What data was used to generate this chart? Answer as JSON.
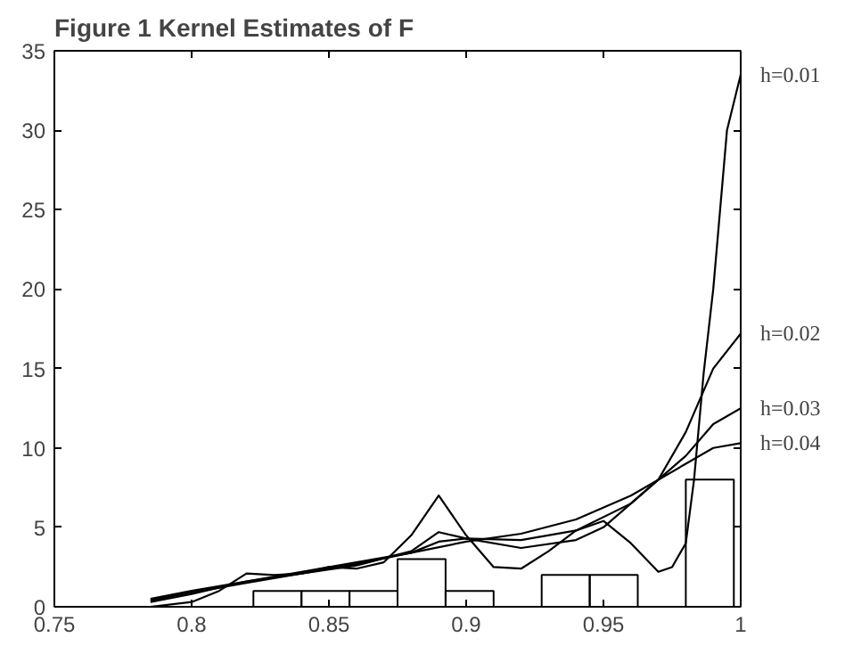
{
  "chart_data": {
    "type": "line",
    "title": "Figure 1        Kernel Estimates of F",
    "xlim": [
      0.75,
      1
    ],
    "ylim": [
      0,
      35
    ],
    "xticks": [
      0.75,
      0.8,
      0.85,
      0.9,
      0.95,
      1
    ],
    "yticks": [
      0,
      5,
      10,
      15,
      20,
      25,
      30,
      35
    ],
    "grid": false,
    "marker": "none",
    "line_style": "solid",
    "series": [
      {
        "type": "histogram",
        "color": "#000000",
        "bins": [
          0.8225,
          0.84,
          0.8575,
          0.875,
          0.8925,
          0.91,
          0.9275,
          0.945,
          0.9625,
          0.98,
          0.9975
        ],
        "values": [
          1,
          1,
          1,
          3,
          1,
          0,
          2,
          2,
          0,
          8
        ]
      },
      {
        "name": "h=0.01",
        "color": "#000000",
        "x": [
          0.785,
          0.8,
          0.81,
          0.82,
          0.83,
          0.84,
          0.85,
          0.86,
          0.87,
          0.88,
          0.89,
          0.9,
          0.91,
          0.92,
          0.93,
          0.94,
          0.95,
          0.96,
          0.97,
          0.975,
          0.98,
          0.983,
          0.9865,
          0.99,
          0.995,
          1
        ],
        "values": [
          0,
          0.3,
          1,
          2.1,
          2,
          2.1,
          2.5,
          2.4,
          2.8,
          4.5,
          7,
          4.5,
          2.5,
          2.4,
          3.5,
          4.8,
          5.4,
          4,
          2.2,
          2.5,
          4,
          8,
          14.7,
          20,
          30,
          33.5
        ]
      },
      {
        "name": "h=0.02",
        "color": "#000000",
        "x": [
          0.785,
          0.8,
          0.82,
          0.84,
          0.86,
          0.88,
          0.89,
          0.9,
          0.92,
          0.94,
          0.95,
          0.97,
          0.98,
          0.99,
          1
        ],
        "values": [
          0.3,
          0.8,
          1.6,
          2.1,
          2.6,
          3.5,
          4.7,
          4.3,
          3.7,
          4.2,
          5,
          8,
          11,
          15,
          17.2
        ]
      },
      {
        "name": "h=0.03",
        "color": "#000000",
        "x": [
          0.785,
          0.8,
          0.82,
          0.84,
          0.86,
          0.88,
          0.89,
          0.9,
          0.92,
          0.94,
          0.96,
          0.98,
          0.99,
          1
        ],
        "values": [
          0.4,
          0.9,
          1.5,
          2.1,
          2.7,
          3.4,
          4.1,
          4.3,
          4.2,
          4.8,
          6.5,
          9.5,
          11.5,
          12.5
        ]
      },
      {
        "name": "h=0.04",
        "color": "#000000",
        "x": [
          0.785,
          0.8,
          0.82,
          0.84,
          0.86,
          0.88,
          0.9,
          0.92,
          0.94,
          0.96,
          0.98,
          0.99,
          1
        ],
        "values": [
          0.5,
          1,
          1.6,
          2.2,
          2.8,
          3.4,
          4.1,
          4.6,
          5.5,
          7,
          9,
          10,
          10.3
        ]
      }
    ]
  }
}
